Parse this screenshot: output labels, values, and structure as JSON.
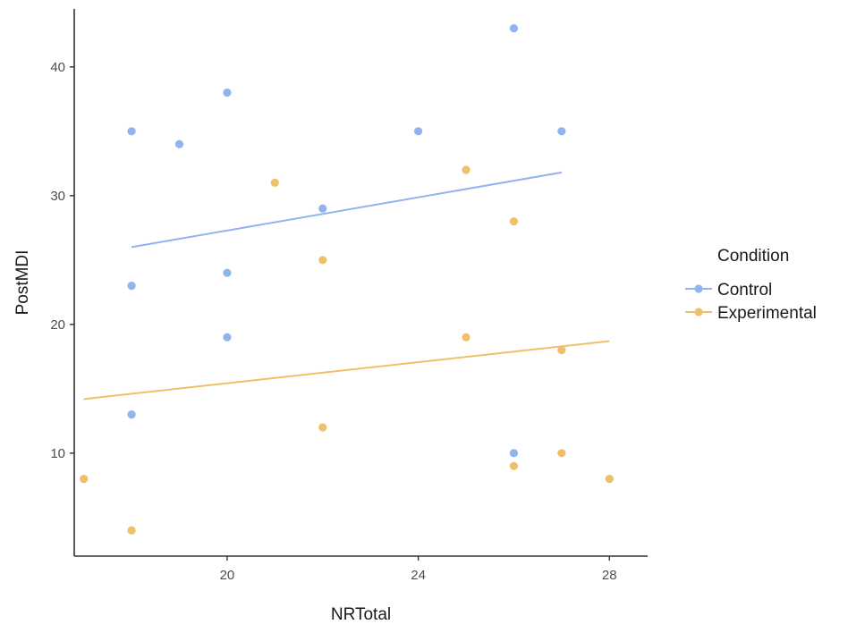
{
  "chart_data": {
    "type": "scatter",
    "xlabel": "NRTotal",
    "ylabel": "PostMDI",
    "xlim": [
      16.8,
      28.8
    ],
    "ylim": [
      2.0,
      44.5
    ],
    "xticks": [
      20,
      24,
      28
    ],
    "yticks": [
      10,
      20,
      30,
      40
    ],
    "grid": false,
    "legend": {
      "title": "Condition",
      "position": "right"
    },
    "series": [
      {
        "name": "Control",
        "color": "#8FB4EF",
        "points": [
          [
            18,
            35
          ],
          [
            18,
            23
          ],
          [
            18,
            13
          ],
          [
            19,
            34
          ],
          [
            20,
            38
          ],
          [
            20,
            24
          ],
          [
            20,
            19
          ],
          [
            22,
            29
          ],
          [
            24,
            35
          ],
          [
            26,
            43
          ],
          [
            26,
            10
          ],
          [
            27,
            35
          ]
        ],
        "trend": [
          [
            18,
            26.0
          ],
          [
            27,
            31.8
          ]
        ]
      },
      {
        "name": "Experimental",
        "color": "#EFC06A",
        "points": [
          [
            17,
            8
          ],
          [
            18,
            4
          ],
          [
            21,
            31
          ],
          [
            22,
            25
          ],
          [
            22,
            12
          ],
          [
            25,
            32
          ],
          [
            25,
            19
          ],
          [
            26,
            28
          ],
          [
            26,
            9
          ],
          [
            27,
            18
          ],
          [
            27,
            10
          ],
          [
            28,
            8
          ]
        ],
        "trend": [
          [
            17,
            14.2
          ],
          [
            28,
            18.7
          ]
        ]
      }
    ]
  }
}
